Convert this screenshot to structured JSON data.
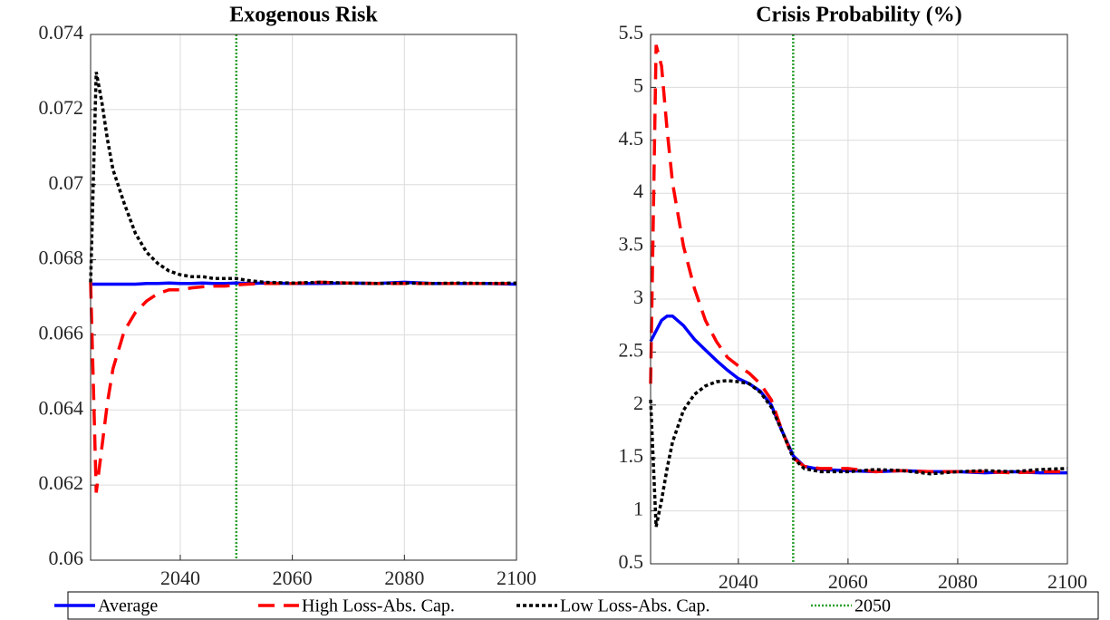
{
  "chart_data": [
    {
      "type": "line",
      "title": "Exogenous Risk",
      "x": [
        2024,
        2025,
        2026,
        2027,
        2028,
        2030,
        2032,
        2034,
        2036,
        2038,
        2040,
        2042,
        2044,
        2046,
        2048,
        2050,
        2052,
        2055,
        2060,
        2065,
        2070,
        2075,
        2080,
        2085,
        2090,
        2095,
        2100
      ],
      "series": [
        {
          "name": "Average",
          "color": "#0000ff",
          "dash": "none",
          "values": [
            0.06735,
            0.06735,
            0.06735,
            0.06735,
            0.06735,
            0.06735,
            0.06735,
            0.06737,
            0.06737,
            0.06738,
            0.06737,
            0.06737,
            0.06738,
            0.06737,
            0.06737,
            0.06738,
            0.06737,
            0.06738,
            0.06737,
            0.06737,
            0.06738,
            0.06737,
            0.0674,
            0.06737,
            0.06737,
            0.06737,
            0.06735
          ]
        },
        {
          "name": "High Loss-Abs. Cap.",
          "color": "#ff0000",
          "dash": "18,10",
          "values": [
            0.0674,
            0.0618,
            0.063,
            0.0642,
            0.0651,
            0.0661,
            0.0666,
            0.0669,
            0.0671,
            0.0672,
            0.0672,
            0.06725,
            0.06728,
            0.0673,
            0.0673,
            0.06733,
            0.06735,
            0.06737,
            0.06737,
            0.0674,
            0.06738,
            0.06737,
            0.06737,
            0.06737,
            0.06737,
            0.06737,
            0.06737
          ]
        },
        {
          "name": "Low Loss-Abs. Cap.",
          "color": "#000000",
          "dash": "4,3",
          "values": [
            0.0674,
            0.073,
            0.0722,
            0.0712,
            0.0704,
            0.0695,
            0.0687,
            0.0682,
            0.0679,
            0.0677,
            0.0676,
            0.06755,
            0.06755,
            0.0675,
            0.0675,
            0.0675,
            0.06745,
            0.0674,
            0.06738,
            0.0674,
            0.06738,
            0.06737,
            0.06738,
            0.06737,
            0.06738,
            0.06737,
            0.06738
          ]
        }
      ],
      "vline": {
        "name": "2050",
        "color": "#2ca02c",
        "x": 2050
      },
      "xlim": [
        2024,
        2100
      ],
      "xticks": [
        2040,
        2060,
        2080,
        2100
      ],
      "ylim": [
        0.06,
        0.074
      ],
      "yticks": [
        0.06,
        0.062,
        0.064,
        0.066,
        0.068,
        0.07,
        0.072,
        0.074
      ],
      "grid": true
    },
    {
      "type": "line",
      "title": "Crisis Probability (%)",
      "x": [
        2024,
        2025,
        2026,
        2027,
        2028,
        2030,
        2032,
        2034,
        2036,
        2038,
        2040,
        2042,
        2044,
        2046,
        2048,
        2050,
        2052,
        2055,
        2060,
        2065,
        2070,
        2075,
        2080,
        2085,
        2090,
        2095,
        2100
      ],
      "series": [
        {
          "values": [
            2.6,
            2.7,
            2.8,
            2.84,
            2.84,
            2.75,
            2.62,
            2.52,
            2.42,
            2.33,
            2.25,
            2.2,
            2.13,
            2.0,
            1.75,
            1.52,
            1.42,
            1.39,
            1.38,
            1.37,
            1.38,
            1.37,
            1.37,
            1.36,
            1.37,
            1.36,
            1.36
          ]
        },
        {
          "values": [
            2.2,
            5.4,
            5.2,
            4.6,
            4.1,
            3.5,
            3.1,
            2.8,
            2.6,
            2.45,
            2.37,
            2.3,
            2.2,
            2.05,
            1.75,
            1.5,
            1.42,
            1.4,
            1.4,
            1.37,
            1.38,
            1.37,
            1.37,
            1.37,
            1.36,
            1.37,
            1.37
          ]
        },
        {
          "values": [
            2.05,
            0.85,
            1.1,
            1.4,
            1.65,
            1.95,
            2.1,
            2.18,
            2.22,
            2.23,
            2.22,
            2.2,
            2.12,
            1.98,
            1.75,
            1.5,
            1.4,
            1.37,
            1.37,
            1.39,
            1.38,
            1.35,
            1.37,
            1.38,
            1.37,
            1.39,
            1.4
          ]
        }
      ],
      "vline_x": 2050,
      "xlim": [
        2024,
        2100
      ],
      "xticks": [
        2040,
        2060,
        2080,
        2100
      ],
      "ylim": [
        0.5,
        5.5
      ],
      "yticks": [
        0.5,
        1,
        1.5,
        2,
        2.5,
        3,
        3.5,
        4,
        4.5,
        5,
        5.5
      ],
      "grid": true
    }
  ]
}
